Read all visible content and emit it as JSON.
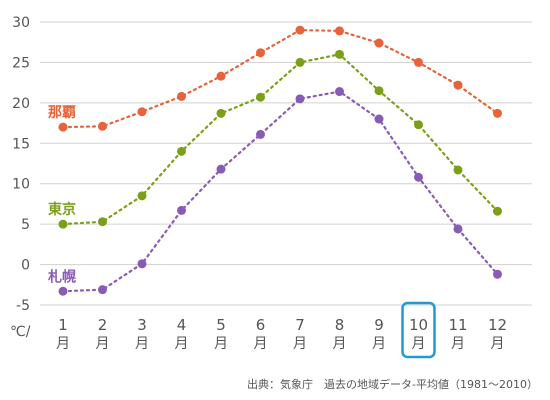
{
  "chart_data": {
    "type": "line",
    "categories_num": [
      "1",
      "2",
      "3",
      "4",
      "5",
      "6",
      "7",
      "8",
      "9",
      "10",
      "11",
      "12"
    ],
    "categories_suffix": "月",
    "y_unit": "℃/",
    "ylim": [
      -5,
      30
    ],
    "yticks": [
      "30",
      "25",
      "20",
      "15",
      "10",
      "5",
      "0",
      "-5"
    ],
    "ytick_values": [
      30,
      25,
      20,
      15,
      10,
      5,
      0,
      -5
    ],
    "grid": "horizontal",
    "highlight_index": 9,
    "series": [
      {
        "name": "那覇",
        "color": "#e8623a",
        "values": [
          17.0,
          17.1,
          18.9,
          20.8,
          23.3,
          26.2,
          29.0,
          28.9,
          27.4,
          25.0,
          22.2,
          18.7
        ]
      },
      {
        "name": "東京",
        "color": "#7aa01a",
        "values": [
          5.0,
          5.3,
          8.5,
          14.0,
          18.7,
          20.7,
          25.0,
          26.0,
          21.5,
          17.3,
          11.7,
          6.6
        ]
      },
      {
        "name": "札幌",
        "color": "#8a5bb5",
        "values": [
          -3.3,
          -3.1,
          0.1,
          6.7,
          11.8,
          16.1,
          20.5,
          21.4,
          18.0,
          10.8,
          4.4,
          -1.2
        ]
      }
    ],
    "source": "出典：気象庁　過去の地域データ-平均値（1981〜2010）"
  }
}
